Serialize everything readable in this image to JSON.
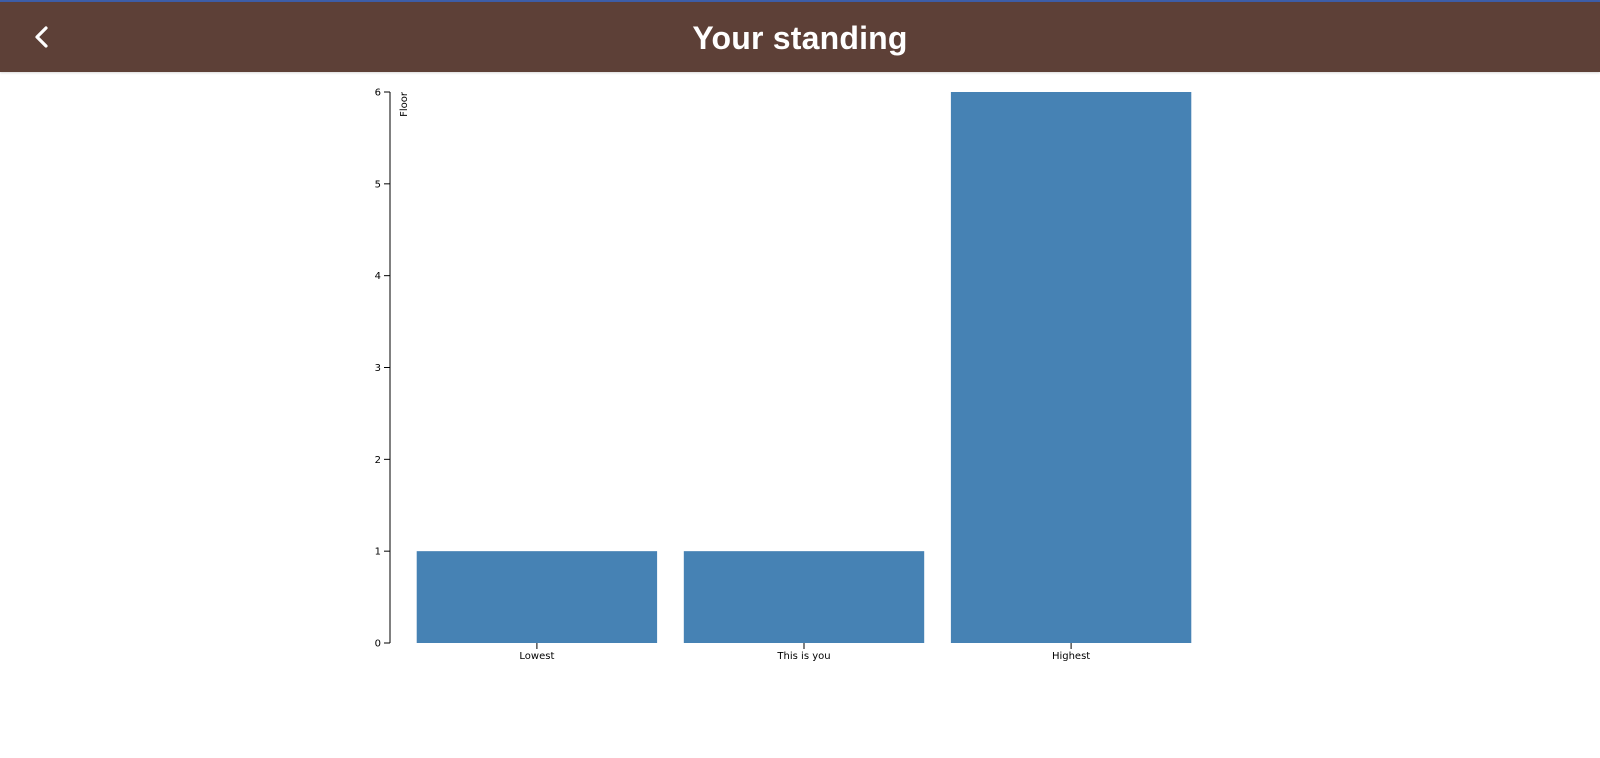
{
  "header": {
    "title": "Your standing",
    "back_icon": "chevron-left-icon"
  },
  "colors": {
    "appbar": "#5d4037",
    "bar": "#4682b4",
    "axis": "#000000",
    "topline": "#3d5ea8"
  },
  "chart_data": {
    "type": "bar",
    "categories": [
      "Lowest",
      "This is you",
      "Highest"
    ],
    "values": [
      1,
      1,
      6
    ],
    "ylabel": "Floor",
    "xlabel": "",
    "ylim": [
      0,
      6
    ],
    "yticks": [
      0,
      1,
      2,
      3,
      4,
      5,
      6
    ],
    "grid": false
  }
}
